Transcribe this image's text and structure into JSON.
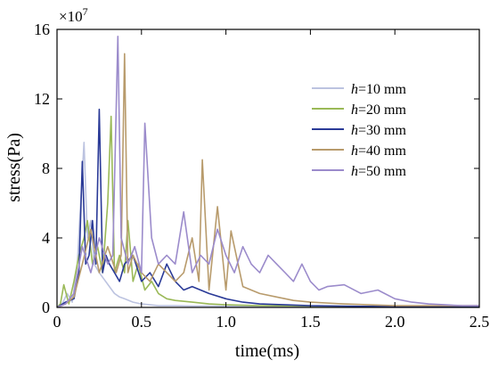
{
  "chart_data": {
    "type": "line",
    "title": "",
    "xlabel": "time(ms)",
    "ylabel": "stress(Pa)",
    "y_exponent_label": "×10",
    "y_exponent_power": "7",
    "xlim": [
      0,
      2.5
    ],
    "ylim": [
      0,
      16
    ],
    "x_ticks": [
      0,
      0.5,
      1.0,
      1.5,
      2.0,
      2.5
    ],
    "x_tick_labels": [
      "0",
      "0.5",
      "1.0",
      "1.5",
      "2.0",
      "2.5"
    ],
    "y_ticks": [
      0,
      4,
      8,
      12,
      16
    ],
    "y_tick_labels": [
      "0",
      "4",
      "8",
      "12",
      "16"
    ],
    "legend_position": "top-right",
    "grid": false,
    "series": [
      {
        "name": "h=10 mm",
        "label_prefix": "h",
        "label_suffix": "=10 mm",
        "color": "#bcc3e0",
        "x": [
          0,
          0.03,
          0.06,
          0.09,
          0.12,
          0.14,
          0.16,
          0.18,
          0.2,
          0.22,
          0.25,
          0.28,
          0.31,
          0.34,
          0.37,
          0.4,
          0.45,
          0.5,
          0.55,
          0.6,
          0.7,
          0.8,
          0.9,
          1.0,
          1.2,
          1.5,
          1.8,
          2.1,
          2.5
        ],
        "y": [
          0,
          0.2,
          0.8,
          0.3,
          2.5,
          6,
          9.5,
          4,
          5,
          2.5,
          2,
          1.6,
          1.2,
          0.8,
          0.6,
          0.5,
          0.3,
          0.2,
          0.15,
          0.1,
          0.1,
          0.08,
          0.08,
          0.06,
          0.06,
          0.05,
          0.05,
          0.05,
          0.05
        ]
      },
      {
        "name": "h=20 mm",
        "label_prefix": "h",
        "label_suffix": "=20 mm",
        "color": "#9ab957",
        "x": [
          0,
          0.02,
          0.04,
          0.07,
          0.1,
          0.13,
          0.16,
          0.18,
          0.21,
          0.24,
          0.27,
          0.3,
          0.32,
          0.34,
          0.37,
          0.4,
          0.42,
          0.45,
          0.48,
          0.52,
          0.56,
          0.6,
          0.65,
          0.7,
          0.8,
          0.9,
          1.0,
          1.2,
          1.5,
          1.8,
          2.0,
          2.5
        ],
        "y": [
          0,
          0.2,
          1.3,
          0.2,
          1.5,
          3,
          4,
          5,
          2.5,
          3.5,
          2,
          6,
          11,
          2,
          3,
          2,
          5,
          1.5,
          2.5,
          1,
          1.5,
          0.8,
          0.5,
          0.4,
          0.3,
          0.2,
          0.15,
          0.1,
          0.08,
          0.06,
          0.05,
          0.05
        ]
      },
      {
        "name": "h=30 mm",
        "label_prefix": "h",
        "label_suffix": "=30 mm",
        "color": "#2a3a97",
        "x": [
          0,
          0.05,
          0.1,
          0.13,
          0.15,
          0.17,
          0.19,
          0.21,
          0.23,
          0.25,
          0.27,
          0.29,
          0.31,
          0.34,
          0.37,
          0.4,
          0.45,
          0.5,
          0.55,
          0.6,
          0.65,
          0.7,
          0.75,
          0.8,
          0.9,
          1.0,
          1.1,
          1.2,
          1.5,
          1.8,
          2.0,
          2.5
        ],
        "y": [
          0,
          0.3,
          0.5,
          2,
          8.4,
          2.5,
          3,
          5,
          2.5,
          11.4,
          2,
          3,
          2.5,
          2,
          1.5,
          2.5,
          3,
          1.5,
          2,
          1.2,
          2.5,
          1.5,
          1,
          1.2,
          0.8,
          0.5,
          0.3,
          0.2,
          0.1,
          0.06,
          0.05,
          0.05
        ]
      },
      {
        "name": "h=40 mm",
        "label_prefix": "h",
        "label_suffix": "=40 mm",
        "color": "#b89b6c",
        "x": [
          0,
          0.05,
          0.1,
          0.15,
          0.2,
          0.25,
          0.3,
          0.35,
          0.38,
          0.4,
          0.42,
          0.45,
          0.5,
          0.55,
          0.6,
          0.7,
          0.75,
          0.8,
          0.84,
          0.86,
          0.9,
          0.95,
          1.0,
          1.03,
          1.1,
          1.2,
          1.3,
          1.4,
          1.5,
          1.7,
          2.0,
          2.5
        ],
        "y": [
          0,
          0.2,
          0.6,
          2.5,
          4.5,
          2,
          3.5,
          2,
          3,
          14.6,
          2,
          3,
          2,
          1.5,
          2.5,
          1.5,
          2,
          4,
          1.5,
          8.5,
          1,
          5.8,
          1,
          4.4,
          1.2,
          0.8,
          0.6,
          0.4,
          0.3,
          0.2,
          0.1,
          0.1
        ]
      },
      {
        "name": "h=50 mm",
        "label_prefix": "h",
        "label_suffix": "=50 mm",
        "color": "#9b8bcb",
        "x": [
          0,
          0.05,
          0.1,
          0.15,
          0.2,
          0.25,
          0.3,
          0.33,
          0.36,
          0.38,
          0.42,
          0.46,
          0.5,
          0.52,
          0.56,
          0.6,
          0.65,
          0.7,
          0.75,
          0.8,
          0.85,
          0.9,
          0.95,
          1.0,
          1.05,
          1.1,
          1.15,
          1.2,
          1.25,
          1.3,
          1.35,
          1.4,
          1.45,
          1.5,
          1.55,
          1.6,
          1.7,
          1.8,
          1.9,
          2.0,
          2.1,
          2.2,
          2.3,
          2.4,
          2.5
        ],
        "y": [
          0,
          0.2,
          0.8,
          3.5,
          2,
          4,
          2.5,
          3,
          15.6,
          4,
          2.5,
          3.5,
          2,
          10.6,
          4,
          2.5,
          3,
          2.5,
          5.5,
          2,
          3,
          2.5,
          4.5,
          3,
          2,
          3.5,
          2.5,
          2,
          3,
          2.5,
          2,
          1.5,
          2.5,
          1.5,
          1,
          1.2,
          1.3,
          0.8,
          1,
          0.5,
          0.3,
          0.2,
          0.15,
          0.1,
          0.1
        ]
      }
    ]
  }
}
